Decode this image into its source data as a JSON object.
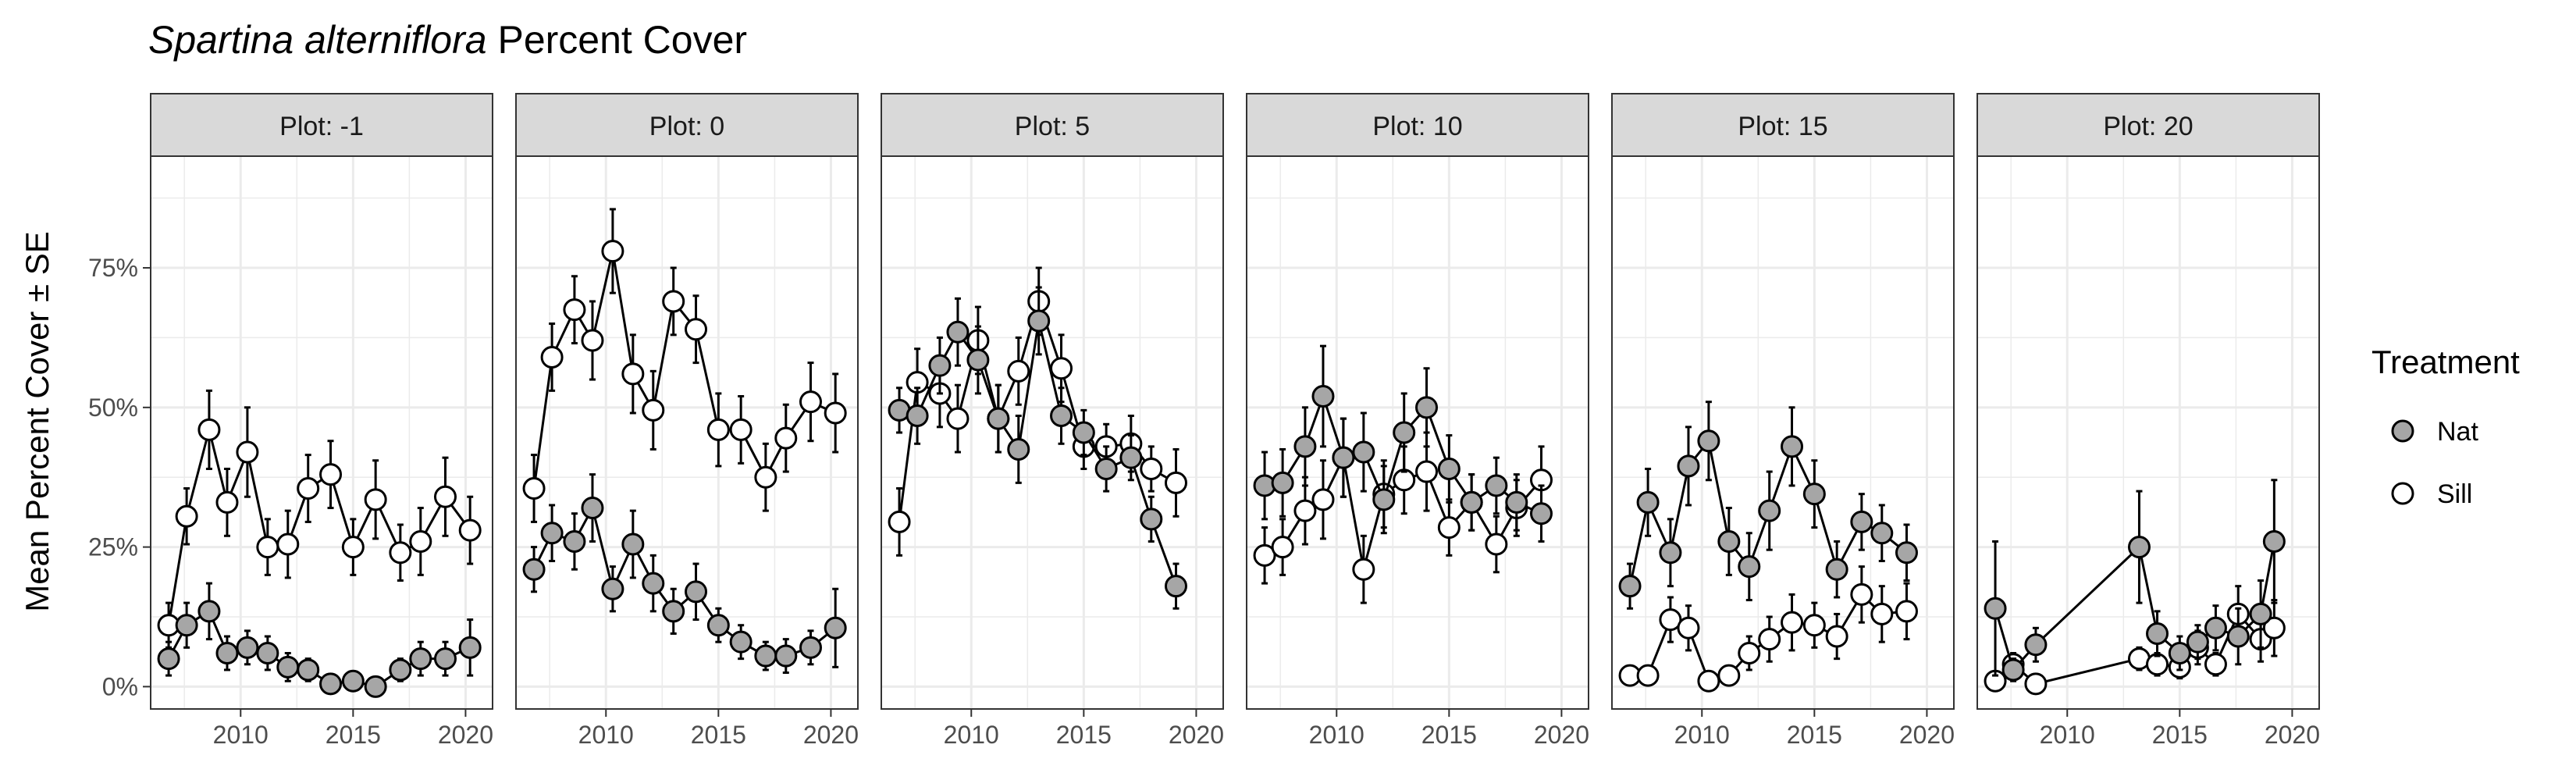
{
  "chart_data": {
    "type": "scatter",
    "title_italic": "Spartina alterniflora",
    "title_rest": " Percent Cover",
    "xlabel": "",
    "ylabel": "Mean Percent Cover ± SE",
    "xlim": [
      2006,
      2021.2
    ],
    "ylim": [
      -0.04,
      0.95
    ],
    "x_ticks": [
      2010,
      2015,
      2020
    ],
    "y_ticks": [
      0,
      0.25,
      0.5,
      0.75
    ],
    "y_tick_labels": [
      "0%",
      "25%",
      "50%",
      "75%"
    ],
    "grid": true,
    "legend": {
      "title": "Treatment",
      "placement": "right",
      "entries": [
        {
          "name": "Nat",
          "fill": "#a6a6a6"
        },
        {
          "name": "Sill",
          "fill": "#ffffff"
        }
      ]
    },
    "colors": {
      "nat": "#a6a6a6",
      "sill": "#ffffff",
      "strip": "#d9d9d9",
      "grid": "#ebebeb",
      "ink": "#000000"
    },
    "panels": [
      {
        "label": "Plot: -1",
        "series": [
          {
            "name": "Nat",
            "points": [
              [
                2006.8,
                0.05,
                0.03
              ],
              [
                2007.6,
                0.11,
                0.04
              ],
              [
                2008.6,
                0.135,
                0.05
              ],
              [
                2009.4,
                0.06,
                0.03
              ],
              [
                2010.3,
                0.07,
                0.03
              ],
              [
                2011.2,
                0.06,
                0.03
              ],
              [
                2012.1,
                0.035,
                0.025
              ],
              [
                2013,
                0.03,
                0.02
              ],
              [
                2014,
                0.005,
                0.01
              ],
              [
                2015,
                0.01,
                0.01
              ],
              [
                2016,
                0.0,
                0.01
              ],
              [
                2017.1,
                0.03,
                0.02
              ],
              [
                2018,
                0.05,
                0.03
              ],
              [
                2019.1,
                0.05,
                0.03
              ],
              [
                2020.2,
                0.07,
                0.05
              ]
            ]
          },
          {
            "name": "Sill",
            "points": [
              [
                2006.8,
                0.11,
                0.04
              ],
              [
                2007.6,
                0.305,
                0.05
              ],
              [
                2008.6,
                0.46,
                0.07
              ],
              [
                2009.4,
                0.33,
                0.06
              ],
              [
                2010.3,
                0.42,
                0.08
              ],
              [
                2011.2,
                0.25,
                0.05
              ],
              [
                2012.1,
                0.255,
                0.06
              ],
              [
                2013,
                0.355,
                0.06
              ],
              [
                2014,
                0.38,
                0.06
              ],
              [
                2015,
                0.25,
                0.05
              ],
              [
                2016,
                0.335,
                0.07
              ],
              [
                2017.1,
                0.24,
                0.05
              ],
              [
                2018,
                0.26,
                0.06
              ],
              [
                2019.1,
                0.34,
                0.07
              ],
              [
                2020.2,
                0.28,
                0.06
              ]
            ]
          }
        ]
      },
      {
        "label": "Plot: 0",
        "series": [
          {
            "name": "Nat",
            "points": [
              [
                2006.8,
                0.21,
                0.04
              ],
              [
                2007.6,
                0.275,
                0.05
              ],
              [
                2008.6,
                0.26,
                0.05
              ],
              [
                2009.4,
                0.32,
                0.06
              ],
              [
                2010.3,
                0.175,
                0.04
              ],
              [
                2011.2,
                0.255,
                0.06
              ],
              [
                2012.1,
                0.185,
                0.05
              ],
              [
                2013,
                0.135,
                0.04
              ],
              [
                2014,
                0.17,
                0.05
              ],
              [
                2015,
                0.11,
                0.03
              ],
              [
                2016,
                0.08,
                0.03
              ],
              [
                2017.1,
                0.055,
                0.025
              ],
              [
                2018,
                0.055,
                0.03
              ],
              [
                2019.1,
                0.07,
                0.03
              ],
              [
                2020.2,
                0.105,
                0.07
              ]
            ]
          },
          {
            "name": "Sill",
            "points": [
              [
                2006.8,
                0.355,
                0.06
              ],
              [
                2007.6,
                0.59,
                0.06
              ],
              [
                2008.6,
                0.675,
                0.06
              ],
              [
                2009.4,
                0.62,
                0.07
              ],
              [
                2010.3,
                0.78,
                0.075
              ],
              [
                2011.2,
                0.56,
                0.07
              ],
              [
                2012.1,
                0.495,
                0.07
              ],
              [
                2013,
                0.69,
                0.06
              ],
              [
                2014,
                0.64,
                0.06
              ],
              [
                2015,
                0.46,
                0.065
              ],
              [
                2016,
                0.46,
                0.06
              ],
              [
                2017.1,
                0.375,
                0.06
              ],
              [
                2018,
                0.445,
                0.06
              ],
              [
                2019.1,
                0.51,
                0.07
              ],
              [
                2020.2,
                0.49,
                0.07
              ]
            ]
          }
        ]
      },
      {
        "label": "Plot: 5",
        "series": [
          {
            "name": "Nat",
            "points": [
              [
                2006.8,
                0.495,
                0.04
              ],
              [
                2007.6,
                0.485,
                0.05
              ],
              [
                2008.6,
                0.575,
                0.05
              ],
              [
                2009.4,
                0.635,
                0.06
              ],
              [
                2010.3,
                0.585,
                0.06
              ],
              [
                2011.2,
                0.48,
                0.06
              ],
              [
                2012.1,
                0.425,
                0.06
              ],
              [
                2013,
                0.655,
                0.06
              ],
              [
                2014,
                0.485,
                0.05
              ],
              [
                2015,
                0.455,
                0.04
              ],
              [
                2016,
                0.39,
                0.04
              ],
              [
                2017.1,
                0.41,
                0.04
              ],
              [
                2018,
                0.3,
                0.04
              ],
              [
                2019.1,
                0.18,
                0.04
              ]
            ]
          },
          {
            "name": "Sill",
            "points": [
              [
                2006.8,
                0.295,
                0.06
              ],
              [
                2007.6,
                0.545,
                0.06
              ],
              [
                2008.6,
                0.525,
                0.06
              ],
              [
                2009.4,
                0.48,
                0.06
              ],
              [
                2010.3,
                0.62,
                0.06
              ],
              [
                2011.2,
                0.48,
                0.06
              ],
              [
                2012.1,
                0.565,
                0.06
              ],
              [
                2013,
                0.69,
                0.06
              ],
              [
                2014,
                0.57,
                0.06
              ],
              [
                2015,
                0.43,
                0.04
              ],
              [
                2016,
                0.43,
                0.04
              ],
              [
                2017.1,
                0.435,
                0.05
              ],
              [
                2018,
                0.39,
                0.04
              ],
              [
                2019.1,
                0.365,
                0.06
              ]
            ]
          }
        ]
      },
      {
        "label": "Plot: 10",
        "series": [
          {
            "name": "Nat",
            "points": [
              [
                2006.8,
                0.36,
                0.06
              ],
              [
                2007.6,
                0.365,
                0.06
              ],
              [
                2008.6,
                0.43,
                0.07
              ],
              [
                2009.4,
                0.52,
                0.09
              ],
              [
                2010.3,
                0.41,
                0.07
              ],
              [
                2011.2,
                0.42,
                0.07
              ],
              [
                2012.1,
                0.335,
                0.06
              ],
              [
                2013,
                0.455,
                0.07
              ],
              [
                2014,
                0.5,
                0.07
              ],
              [
                2015,
                0.39,
                0.06
              ],
              [
                2016,
                0.33,
                0.05
              ],
              [
                2017.1,
                0.36,
                0.05
              ],
              [
                2018,
                0.33,
                0.05
              ],
              [
                2019.1,
                0.31,
                0.05
              ]
            ]
          },
          {
            "name": "Sill",
            "points": [
              [
                2006.8,
                0.235,
                0.05
              ],
              [
                2007.6,
                0.25,
                0.05
              ],
              [
                2008.6,
                0.315,
                0.06
              ],
              [
                2009.4,
                0.335,
                0.07
              ],
              [
                2010.3,
                0.41,
                0.07
              ],
              [
                2011.2,
                0.21,
                0.06
              ],
              [
                2012.1,
                0.345,
                0.06
              ],
              [
                2013,
                0.37,
                0.06
              ],
              [
                2014,
                0.385,
                0.07
              ],
              [
                2015,
                0.285,
                0.05
              ],
              [
                2016,
                0.33,
                0.05
              ],
              [
                2017.1,
                0.255,
                0.05
              ],
              [
                2018,
                0.32,
                0.05
              ],
              [
                2019.1,
                0.37,
                0.06
              ]
            ]
          }
        ]
      },
      {
        "label": "Plot: 15",
        "series": [
          {
            "name": "Nat",
            "points": [
              [
                2006.8,
                0.18,
                0.04
              ],
              [
                2007.6,
                0.33,
                0.06
              ],
              [
                2008.6,
                0.24,
                0.06
              ],
              [
                2009.4,
                0.395,
                0.07
              ],
              [
                2010.3,
                0.44,
                0.07
              ],
              [
                2011.2,
                0.26,
                0.06
              ],
              [
                2012.1,
                0.215,
                0.06
              ],
              [
                2013,
                0.315,
                0.07
              ],
              [
                2014,
                0.43,
                0.07
              ],
              [
                2015,
                0.345,
                0.06
              ],
              [
                2016,
                0.21,
                0.05
              ],
              [
                2017.1,
                0.295,
                0.05
              ],
              [
                2018,
                0.275,
                0.05
              ],
              [
                2019.1,
                0.24,
                0.05
              ]
            ]
          },
          {
            "name": "Sill",
            "points": [
              [
                2006.8,
                0.02,
                0.01
              ],
              [
                2007.6,
                0.02,
                0.01
              ],
              [
                2008.6,
                0.12,
                0.04
              ],
              [
                2009.4,
                0.105,
                0.04
              ],
              [
                2010.3,
                0.01,
                0.01
              ],
              [
                2011.2,
                0.02,
                0.01
              ],
              [
                2012.1,
                0.06,
                0.03
              ],
              [
                2013,
                0.085,
                0.04
              ],
              [
                2014,
                0.115,
                0.05
              ],
              [
                2015,
                0.11,
                0.04
              ],
              [
                2016,
                0.09,
                0.04
              ],
              [
                2017.1,
                0.165,
                0.05
              ],
              [
                2018,
                0.13,
                0.05
              ],
              [
                2019.1,
                0.135,
                0.05
              ]
            ]
          }
        ]
      },
      {
        "label": "Plot: 20",
        "series": [
          {
            "name": "Nat",
            "points": [
              [
                2006.8,
                0.14,
                0.12
              ],
              [
                2007.6,
                0.03,
                0.02
              ],
              [
                2008.6,
                0.075,
                0.03
              ],
              [
                2013.2,
                0.25,
                0.1
              ],
              [
                2014,
                0.095,
                0.04
              ],
              [
                2015,
                0.06,
                0.03
              ],
              [
                2015.8,
                0.08,
                0.03
              ],
              [
                2016.6,
                0.105,
                0.04
              ],
              [
                2017.6,
                0.09,
                0.05
              ],
              [
                2018.6,
                0.13,
                0.06
              ],
              [
                2019.2,
                0.26,
                0.11
              ]
            ]
          },
          {
            "name": "Sill",
            "points": [
              [
                2006.8,
                0.01,
                0.01
              ],
              [
                2007.6,
                0.04,
                0.02
              ],
              [
                2008.6,
                0.005,
                0.01
              ],
              [
                2013.2,
                0.05,
                0.02
              ],
              [
                2014,
                0.04,
                0.02
              ],
              [
                2015,
                0.035,
                0.02
              ],
              [
                2015.8,
                0.07,
                0.03
              ],
              [
                2016.6,
                0.04,
                0.02
              ],
              [
                2017.6,
                0.13,
                0.05
              ],
              [
                2018.6,
                0.085,
                0.04
              ],
              [
                2019.2,
                0.105,
                0.05
              ]
            ]
          }
        ]
      }
    ]
  }
}
